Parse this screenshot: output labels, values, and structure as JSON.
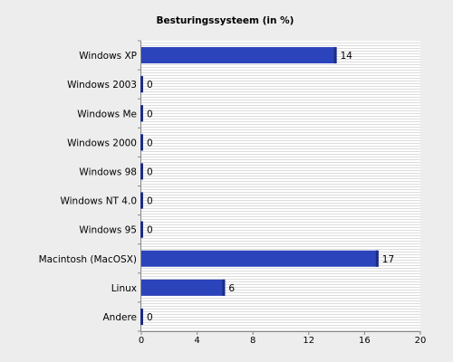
{
  "chart_data": {
    "type": "bar",
    "orientation": "horizontal",
    "title": "Besturingssysteem (in %)",
    "xlabel": "",
    "ylabel": "",
    "categories": [
      "Windows XP",
      "Windows 2003",
      "Windows Me",
      "Windows 2000",
      "Windows 98",
      "Windows NT 4.0",
      "Windows 95",
      "Macintosh (MacOSX)",
      "Linux",
      "Andere"
    ],
    "values": [
      14,
      0,
      0,
      0,
      0,
      0,
      0,
      17,
      6,
      0
    ],
    "data_labels": [
      "14",
      "0",
      "0",
      "0",
      "0",
      "0",
      "0",
      "17",
      "6",
      "0"
    ],
    "xlim": [
      0,
      20
    ],
    "xticks": [
      0,
      4,
      8,
      12,
      16,
      20
    ],
    "grid": "horizontal stripes",
    "colors": {
      "bar": "#2b44bb",
      "bar_edge": "#1c2d80",
      "grid": "#dcdcdc",
      "background": "#ededed",
      "plot_background": "#ffffff"
    }
  }
}
